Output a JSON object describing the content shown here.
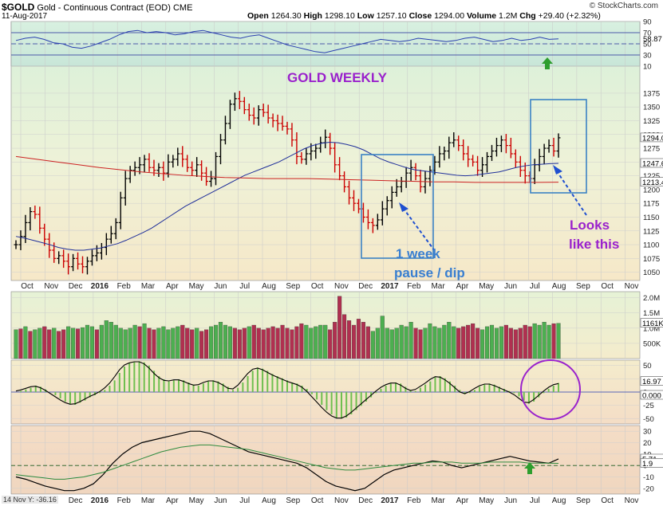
{
  "header": {
    "symbol": "$GOLD",
    "name": "Gold - Continuous Contract (EOD)",
    "exchange": "CME",
    "date": "11-Aug-2017",
    "watermark": "© StockCharts.com",
    "ohlc": [
      {
        "label": "Open",
        "value": "1264.30"
      },
      {
        "label": "High",
        "value": "1298.10"
      },
      {
        "label": "Low",
        "value": "1257.10"
      },
      {
        "label": "Close",
        "value": "1294.00"
      },
      {
        "label": "Volume",
        "value": "1.2M"
      },
      {
        "label": "Chg",
        "value": "+29.40 (+2.32%)"
      }
    ]
  },
  "annotations": {
    "title": "GOLD WEEKLY",
    "pause_line1": "1 week",
    "pause_line2": "pause / dip",
    "looks_line1": "Looks",
    "looks_line2": "like this"
  },
  "footer_readout": "14 Nov Y: -36.16",
  "x_axis": {
    "labels": [
      "Oct",
      "Nov",
      "Dec",
      "2016",
      "Feb",
      "Mar",
      "Apr",
      "May",
      "Jun",
      "Jul",
      "Aug",
      "Sep",
      "Oct",
      "Nov",
      "Dec",
      "2017",
      "Feb",
      "Mar",
      "Apr",
      "May",
      "Jun",
      "Jul",
      "Aug",
      "Sep",
      "Oct",
      "Nov"
    ],
    "bold": [
      "2016",
      "2017"
    ]
  },
  "colors": {
    "up": "#000000",
    "down": "#cc0000",
    "ma_fast": "#1f2f9a",
    "ma_slow": "#cc2222",
    "vol_up": "#4caf50",
    "vol_down": "#b03050",
    "annot_purple": "#9a22cc",
    "annot_blue": "#3a7fd0",
    "box": "#3b82c4",
    "arrow_green": "#2e9e2e"
  },
  "chart_data": [
    {
      "type": "line",
      "panel": "rsi",
      "ylim": [
        10,
        90
      ],
      "ticks": [
        "90",
        "70",
        "50",
        "30",
        "10"
      ],
      "reference_lines": [
        70,
        50,
        30
      ],
      "current_label": "58.87",
      "series": [
        {
          "values": [
            56,
            60,
            62,
            58,
            52,
            50,
            44,
            42,
            46,
            52,
            58,
            66,
            72,
            74,
            70,
            72,
            70,
            66,
            68,
            72,
            74,
            70,
            66,
            62,
            60,
            64,
            66,
            60,
            54,
            48,
            44,
            40,
            36,
            34,
            38,
            42,
            46,
            50,
            54,
            58,
            56,
            54,
            56,
            60,
            58,
            56,
            54,
            56,
            60,
            62,
            58,
            54,
            56,
            60,
            56,
            58,
            62,
            58,
            59
          ]
        }
      ]
    },
    {
      "type": "ohlc",
      "panel": "price",
      "ylim": [
        1035,
        1385
      ],
      "ticks": [
        "1375",
        "1350",
        "1325",
        "1300",
        "1275",
        "1250",
        "1225",
        "1200",
        "1175",
        "1150",
        "1125",
        "1100",
        "1075",
        "1050"
      ],
      "current_labels": [
        "1294.0",
        "1247.6",
        "1213.4"
      ],
      "closes": [
        1100,
        1115,
        1140,
        1160,
        1155,
        1130,
        1110,
        1090,
        1075,
        1080,
        1070,
        1060,
        1075,
        1065,
        1060,
        1070,
        1080,
        1085,
        1095,
        1110,
        1120,
        1140,
        1185,
        1220,
        1235,
        1240,
        1245,
        1255,
        1240,
        1235,
        1240,
        1230,
        1250,
        1255,
        1265,
        1255,
        1240,
        1235,
        1245,
        1230,
        1215,
        1220,
        1260,
        1290,
        1320,
        1355,
        1365,
        1360,
        1345,
        1335,
        1330,
        1345,
        1340,
        1330,
        1325,
        1320,
        1315,
        1310,
        1290,
        1260,
        1255,
        1265,
        1270,
        1275,
        1285,
        1295,
        1275,
        1245,
        1225,
        1205,
        1185,
        1175,
        1165,
        1150,
        1140,
        1135,
        1145,
        1165,
        1180,
        1195,
        1205,
        1215,
        1230,
        1240,
        1225,
        1205,
        1220,
        1235,
        1250,
        1265,
        1270,
        1285,
        1290,
        1280,
        1265,
        1255,
        1250,
        1235,
        1245,
        1260,
        1270,
        1280,
        1290,
        1280,
        1265,
        1250,
        1235,
        1225,
        1220,
        1245,
        1260,
        1275,
        1280,
        1270,
        1294
      ],
      "ma_fast": [
        1115,
        1112,
        1108,
        1104,
        1100,
        1095,
        1092,
        1090,
        1090,
        1092,
        1094,
        1098,
        1102,
        1108,
        1115,
        1122,
        1130,
        1140,
        1150,
        1160,
        1170,
        1178,
        1186,
        1194,
        1202,
        1210,
        1218,
        1226,
        1232,
        1238,
        1244,
        1250,
        1258,
        1266,
        1274,
        1280,
        1284,
        1286,
        1285,
        1282,
        1278,
        1272,
        1264,
        1256,
        1250,
        1245,
        1240,
        1236,
        1234,
        1232,
        1230,
        1228,
        1226,
        1225,
        1226,
        1228,
        1230,
        1232,
        1236,
        1240,
        1243,
        1245,
        1246,
        1247,
        1247.6
      ],
      "ma_slow": [
        1260,
        1255,
        1250,
        1245,
        1240,
        1236,
        1232,
        1229,
        1226,
        1224,
        1222,
        1221,
        1220,
        1220,
        1220,
        1219,
        1218,
        1217,
        1216,
        1215,
        1214,
        1214,
        1213,
        1213,
        1213,
        1213,
        1213.4
      ]
    },
    {
      "type": "bar",
      "panel": "volume",
      "ylim": [
        0,
        2.2
      ],
      "ticks": [
        "2.0M",
        "1.5M",
        "1.0M",
        "500K"
      ],
      "current_label": "1161K",
      "values": [
        0.95,
        0.98,
        1.05,
        0.9,
        0.95,
        1.0,
        1.05,
        0.95,
        1.0,
        0.9,
        0.95,
        1.05,
        1.0,
        0.98,
        1.02,
        1.1,
        1.05,
        0.95,
        1.1,
        1.25,
        1.2,
        1.1,
        1.0,
        0.95,
        1.0,
        1.1,
        1.05,
        1.15,
        1.0,
        0.95,
        1.0,
        1.05,
        0.95,
        1.0,
        1.05,
        1.1,
        1.0,
        0.95,
        1.0,
        0.9,
        0.95,
        1.05,
        1.1,
        1.2,
        1.1,
        1.05,
        1.0,
        0.95,
        1.0,
        1.05,
        1.1,
        1.0,
        0.95,
        1.0,
        1.05,
        1.0,
        1.1,
        1.0,
        0.95,
        1.05,
        1.15,
        1.1,
        1.0,
        1.05,
        1.1,
        1.1,
        0.95,
        1.2,
        2.05,
        1.45,
        1.25,
        1.1,
        1.3,
        1.2,
        1.05,
        0.9,
        1.0,
        1.4,
        1.0,
        0.95,
        1.0,
        1.1,
        1.05,
        1.2,
        1.0,
        0.95,
        1.0,
        1.15,
        1.05,
        1.0,
        1.1,
        1.2,
        1.05,
        1.0,
        1.05,
        1.1,
        1.15,
        1.0,
        0.95,
        1.05,
        1.1,
        1.0,
        1.05,
        1.1,
        1.0,
        0.95,
        1.0,
        1.1,
        1.05,
        1.15,
        1.1,
        1.2,
        1.1,
        1.15,
        1.16
      ],
      "up": [
        1,
        0,
        1,
        0,
        1,
        1,
        0,
        0,
        1,
        0,
        0,
        1,
        1,
        0,
        1,
        1,
        1,
        0,
        1,
        1,
        1,
        1,
        1,
        1,
        1,
        1,
        0,
        1,
        0,
        0,
        1,
        1,
        1,
        1,
        1,
        0,
        0,
        0,
        1,
        0,
        0,
        1,
        1,
        1,
        1,
        1,
        0,
        0,
        0,
        1,
        0,
        0,
        0,
        0,
        0,
        0,
        0,
        0,
        0,
        0,
        0,
        1,
        1,
        1,
        1,
        1,
        0,
        0,
        0,
        0,
        0,
        0,
        0,
        0,
        0,
        1,
        1,
        1,
        1,
        1,
        1,
        1,
        1,
        1,
        0,
        0,
        1,
        1,
        1,
        1,
        1,
        1,
        1,
        0,
        0,
        0,
        0,
        0,
        1,
        1,
        1,
        1,
        1,
        0,
        0,
        0,
        0,
        0,
        0,
        1,
        1,
        1,
        1,
        0,
        1
      ]
    },
    {
      "type": "area",
      "panel": "oscillator",
      "ylim": [
        -60,
        60
      ],
      "ticks": [
        "50",
        "25",
        "0",
        "-25",
        "-50"
      ],
      "current_labels": [
        "16.97",
        "0.000"
      ],
      "values": [
        0,
        2,
        5,
        8,
        12,
        10,
        5,
        0,
        -6,
        -12,
        -18,
        -22,
        -24,
        -20,
        -16,
        -10,
        -6,
        -2,
        4,
        12,
        22,
        36,
        48,
        54,
        56,
        58,
        56,
        50,
        40,
        30,
        24,
        20,
        22,
        24,
        22,
        18,
        14,
        12,
        16,
        20,
        22,
        20,
        16,
        10,
        4,
        8,
        18,
        30,
        40,
        46,
        44,
        40,
        34,
        30,
        26,
        22,
        18,
        16,
        12,
        6,
        -4,
        -14,
        -24,
        -34,
        -42,
        -48,
        -50,
        -48,
        -42,
        -34,
        -26,
        -18,
        -10,
        -2,
        6,
        12,
        16,
        18,
        16,
        10,
        4,
        2,
        8,
        14,
        20,
        28,
        30,
        26,
        20,
        12,
        4,
        -4,
        -2,
        4,
        10,
        14,
        16,
        14,
        10,
        6,
        2,
        -2,
        -8,
        -16,
        -22,
        -18,
        -10,
        -2,
        6,
        12,
        16.97
      ],
      "line_values": [
        2,
        4,
        7,
        10,
        11,
        8,
        3,
        -3,
        -9,
        -15,
        -20,
        -23,
        -22,
        -18,
        -13,
        -8,
        -4,
        1,
        8,
        17,
        29,
        42,
        51,
        55,
        57,
        57,
        53,
        45,
        35,
        27,
        22,
        21,
        23,
        23,
        20,
        16,
        13,
        14,
        18,
        21,
        21,
        18,
        13,
        7,
        6,
        13,
        24,
        35,
        43,
        45,
        42,
        37,
        32,
        28,
        24,
        20,
        17,
        14,
        9,
        1,
        -9,
        -19,
        -29,
        -38,
        -45,
        -49,
        -49,
        -45,
        -38,
        -30,
        -22,
        -14,
        -6,
        2,
        9,
        14,
        17,
        17,
        13,
        7,
        3,
        5,
        11,
        17,
        24,
        29,
        28,
        23,
        16,
        8,
        0,
        -3,
        1,
        7,
        12,
        15,
        15,
        12,
        8,
        4,
        0,
        -5,
        -12,
        -19,
        -20,
        -14,
        -6,
        2,
        9,
        14,
        16
      ]
    },
    {
      "type": "line",
      "panel": "momentum",
      "ylim": [
        -25,
        35
      ],
      "ticks": [
        "30",
        "20",
        "10",
        "0",
        "-10",
        "-20"
      ],
      "current_labels": [
        "5.71",
        "1.9"
      ],
      "series": [
        {
          "values": [
            -10,
            -12,
            -15,
            -18,
            -20,
            -22,
            -22,
            -20,
            -16,
            -8,
            2,
            10,
            16,
            20,
            22,
            24,
            26,
            28,
            30,
            30,
            28,
            24,
            20,
            16,
            12,
            10,
            8,
            6,
            4,
            2,
            -2,
            -8,
            -14,
            -18,
            -20,
            -22,
            -20,
            -14,
            -8,
            -4,
            -2,
            0,
            2,
            4,
            3,
            0,
            -2,
            0,
            2,
            4,
            6,
            8,
            6,
            4,
            3,
            2,
            5.71
          ]
        },
        {
          "values": [
            -8,
            -9,
            -10,
            -11,
            -12,
            -12,
            -11,
            -10,
            -8,
            -6,
            -3,
            0,
            3,
            6,
            9,
            12,
            14,
            16,
            17,
            18,
            18,
            17,
            16,
            15,
            14,
            12,
            10,
            8,
            6,
            4,
            2,
            0,
            -2,
            -3,
            -4,
            -4,
            -3,
            -2,
            -1,
            0,
            1,
            2,
            2,
            3,
            3,
            3,
            2,
            2,
            2,
            3,
            3,
            3,
            3,
            2,
            2,
            2,
            1.9
          ]
        }
      ]
    }
  ]
}
